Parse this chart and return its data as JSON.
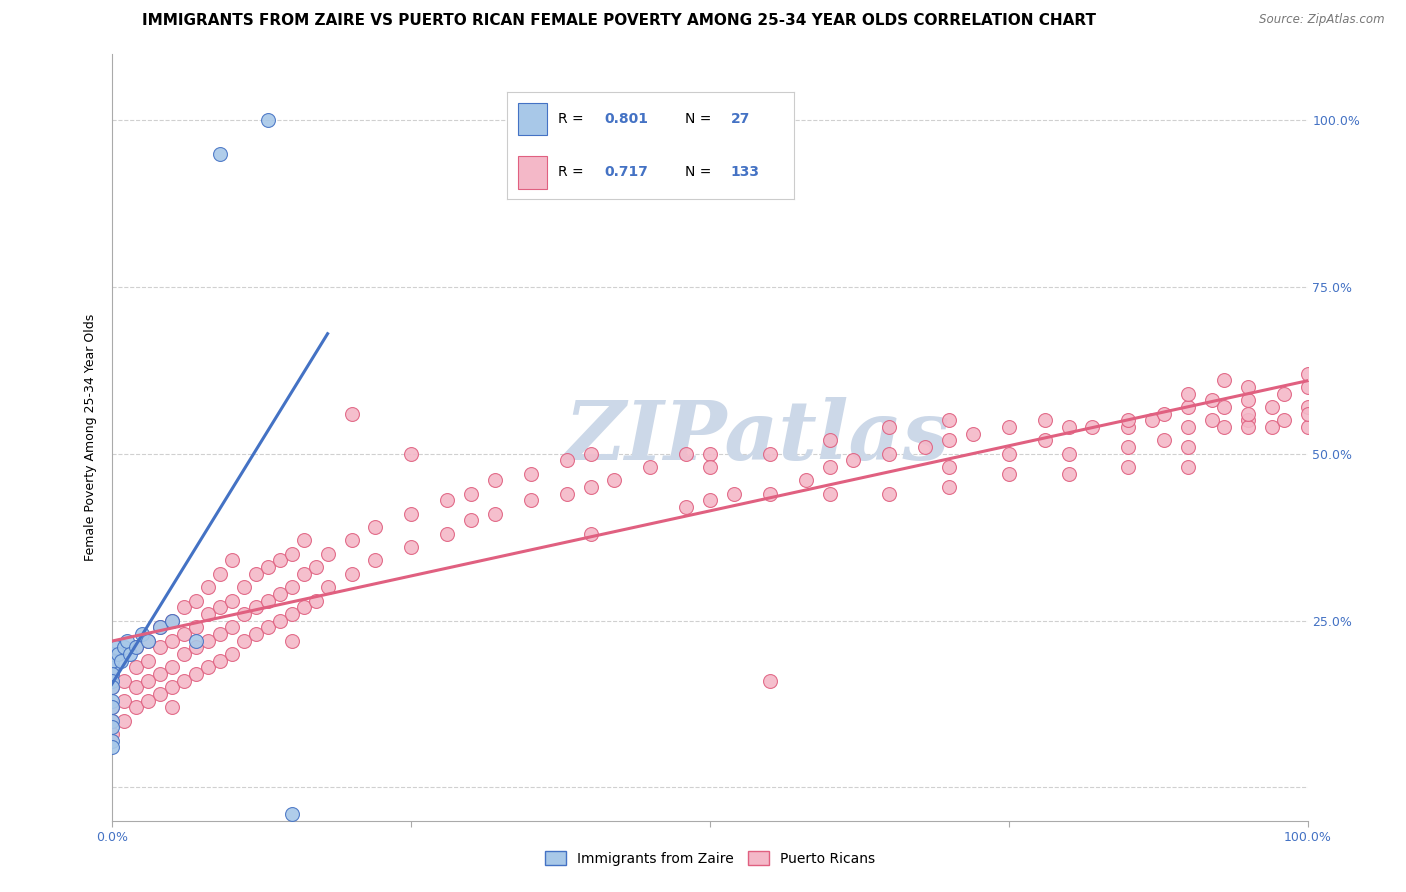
{
  "title": "IMMIGRANTS FROM ZAIRE VS PUERTO RICAN FEMALE POVERTY AMONG 25-34 YEAR OLDS CORRELATION CHART",
  "source": "Source: ZipAtlas.com",
  "ylabel": "Female Poverty Among 25-34 Year Olds",
  "xlim": [
    0.0,
    1.0
  ],
  "ylim": [
    -0.05,
    1.1
  ],
  "xtick_vals": [
    0.0,
    0.25,
    0.5,
    0.75,
    1.0
  ],
  "xtick_labels": [
    "0.0%",
    "",
    "",
    "",
    "100.0%"
  ],
  "ytick_vals": [
    0.0,
    0.25,
    0.5,
    0.75,
    1.0
  ],
  "ytick_labels_right": [
    "",
    "25.0%",
    "50.0%",
    "75.0%",
    "100.0%"
  ],
  "watermark": "ZIPatlas",
  "blue_color": "#a8c8e8",
  "blue_edge": "#4472c4",
  "pink_color": "#f4b8c8",
  "pink_edge": "#e06080",
  "line_blue": "#4472c4",
  "line_pink": "#e06080",
  "blue_regression": [
    -0.03,
    0.18
  ],
  "pink_regression": [
    0.0,
    1.0
  ],
  "zaire_scatter": [
    [
      0.0,
      0.18
    ],
    [
      0.0,
      0.2
    ],
    [
      0.0,
      0.19
    ],
    [
      0.0,
      0.17
    ],
    [
      0.0,
      0.16
    ],
    [
      0.0,
      0.15
    ],
    [
      0.0,
      0.13
    ],
    [
      0.0,
      0.12
    ],
    [
      0.0,
      0.1
    ],
    [
      0.0,
      0.09
    ],
    [
      0.0,
      0.07
    ],
    [
      0.0,
      0.06
    ],
    [
      0.003,
      0.21
    ],
    [
      0.005,
      0.2
    ],
    [
      0.007,
      0.19
    ],
    [
      0.01,
      0.21
    ],
    [
      0.012,
      0.22
    ],
    [
      0.015,
      0.2
    ],
    [
      0.02,
      0.21
    ],
    [
      0.025,
      0.23
    ],
    [
      0.03,
      0.22
    ],
    [
      0.04,
      0.24
    ],
    [
      0.05,
      0.25
    ],
    [
      0.07,
      0.22
    ],
    [
      0.09,
      0.95
    ],
    [
      0.13,
      1.0
    ],
    [
      0.15,
      -0.04
    ]
  ],
  "pr_scatter": [
    [
      0.0,
      0.08
    ],
    [
      0.0,
      0.1
    ],
    [
      0.0,
      0.12
    ],
    [
      0.0,
      0.15
    ],
    [
      0.01,
      0.1
    ],
    [
      0.01,
      0.13
    ],
    [
      0.01,
      0.16
    ],
    [
      0.02,
      0.12
    ],
    [
      0.02,
      0.15
    ],
    [
      0.02,
      0.18
    ],
    [
      0.02,
      0.21
    ],
    [
      0.03,
      0.13
    ],
    [
      0.03,
      0.16
    ],
    [
      0.03,
      0.19
    ],
    [
      0.03,
      0.22
    ],
    [
      0.04,
      0.14
    ],
    [
      0.04,
      0.17
    ],
    [
      0.04,
      0.21
    ],
    [
      0.04,
      0.24
    ],
    [
      0.05,
      0.15
    ],
    [
      0.05,
      0.18
    ],
    [
      0.05,
      0.22
    ],
    [
      0.05,
      0.25
    ],
    [
      0.05,
      0.12
    ],
    [
      0.06,
      0.16
    ],
    [
      0.06,
      0.2
    ],
    [
      0.06,
      0.23
    ],
    [
      0.06,
      0.27
    ],
    [
      0.07,
      0.17
    ],
    [
      0.07,
      0.21
    ],
    [
      0.07,
      0.24
    ],
    [
      0.07,
      0.28
    ],
    [
      0.08,
      0.18
    ],
    [
      0.08,
      0.22
    ],
    [
      0.08,
      0.26
    ],
    [
      0.08,
      0.3
    ],
    [
      0.09,
      0.19
    ],
    [
      0.09,
      0.23
    ],
    [
      0.09,
      0.27
    ],
    [
      0.09,
      0.32
    ],
    [
      0.1,
      0.2
    ],
    [
      0.1,
      0.24
    ],
    [
      0.1,
      0.28
    ],
    [
      0.1,
      0.34
    ],
    [
      0.11,
      0.22
    ],
    [
      0.11,
      0.26
    ],
    [
      0.11,
      0.3
    ],
    [
      0.12,
      0.23
    ],
    [
      0.12,
      0.27
    ],
    [
      0.12,
      0.32
    ],
    [
      0.13,
      0.24
    ],
    [
      0.13,
      0.28
    ],
    [
      0.13,
      0.33
    ],
    [
      0.14,
      0.25
    ],
    [
      0.14,
      0.29
    ],
    [
      0.14,
      0.34
    ],
    [
      0.15,
      0.26
    ],
    [
      0.15,
      0.3
    ],
    [
      0.15,
      0.35
    ],
    [
      0.15,
      0.22
    ],
    [
      0.16,
      0.27
    ],
    [
      0.16,
      0.32
    ],
    [
      0.16,
      0.37
    ],
    [
      0.17,
      0.28
    ],
    [
      0.17,
      0.33
    ],
    [
      0.18,
      0.3
    ],
    [
      0.18,
      0.35
    ],
    [
      0.2,
      0.32
    ],
    [
      0.2,
      0.37
    ],
    [
      0.2,
      0.56
    ],
    [
      0.22,
      0.34
    ],
    [
      0.22,
      0.39
    ],
    [
      0.25,
      0.36
    ],
    [
      0.25,
      0.41
    ],
    [
      0.25,
      0.5
    ],
    [
      0.28,
      0.38
    ],
    [
      0.28,
      0.43
    ],
    [
      0.3,
      0.4
    ],
    [
      0.3,
      0.44
    ],
    [
      0.32,
      0.41
    ],
    [
      0.32,
      0.46
    ],
    [
      0.35,
      0.43
    ],
    [
      0.35,
      0.47
    ],
    [
      0.38,
      0.44
    ],
    [
      0.38,
      0.49
    ],
    [
      0.4,
      0.45
    ],
    [
      0.4,
      0.5
    ],
    [
      0.4,
      0.38
    ],
    [
      0.42,
      0.46
    ],
    [
      0.45,
      0.48
    ],
    [
      0.48,
      0.42
    ],
    [
      0.48,
      0.5
    ],
    [
      0.5,
      0.43
    ],
    [
      0.5,
      0.5
    ],
    [
      0.5,
      0.48
    ],
    [
      0.52,
      0.44
    ],
    [
      0.55,
      0.16
    ],
    [
      0.55,
      0.44
    ],
    [
      0.55,
      0.5
    ],
    [
      0.58,
      0.46
    ],
    [
      0.6,
      0.48
    ],
    [
      0.6,
      0.52
    ],
    [
      0.6,
      0.44
    ],
    [
      0.62,
      0.49
    ],
    [
      0.65,
      0.5
    ],
    [
      0.65,
      0.54
    ],
    [
      0.65,
      0.44
    ],
    [
      0.68,
      0.51
    ],
    [
      0.7,
      0.52
    ],
    [
      0.7,
      0.55
    ],
    [
      0.7,
      0.48
    ],
    [
      0.7,
      0.45
    ],
    [
      0.72,
      0.53
    ],
    [
      0.75,
      0.54
    ],
    [
      0.75,
      0.5
    ],
    [
      0.75,
      0.47
    ],
    [
      0.78,
      0.52
    ],
    [
      0.78,
      0.55
    ],
    [
      0.8,
      0.54
    ],
    [
      0.8,
      0.5
    ],
    [
      0.8,
      0.47
    ],
    [
      0.82,
      0.54
    ],
    [
      0.85,
      0.54
    ],
    [
      0.85,
      0.51
    ],
    [
      0.85,
      0.55
    ],
    [
      0.85,
      0.48
    ],
    [
      0.87,
      0.55
    ],
    [
      0.88,
      0.52
    ],
    [
      0.88,
      0.56
    ],
    [
      0.9,
      0.54
    ],
    [
      0.9,
      0.57
    ],
    [
      0.9,
      0.51
    ],
    [
      0.9,
      0.48
    ],
    [
      0.9,
      0.59
    ],
    [
      0.92,
      0.55
    ],
    [
      0.92,
      0.58
    ],
    [
      0.93,
      0.54
    ],
    [
      0.93,
      0.57
    ],
    [
      0.93,
      0.61
    ],
    [
      0.95,
      0.55
    ],
    [
      0.95,
      0.58
    ],
    [
      0.95,
      0.54
    ],
    [
      0.95,
      0.6
    ],
    [
      0.95,
      0.56
    ],
    [
      0.97,
      0.54
    ],
    [
      0.97,
      0.57
    ],
    [
      0.98,
      0.55
    ],
    [
      0.98,
      0.59
    ],
    [
      1.0,
      0.54
    ],
    [
      1.0,
      0.57
    ],
    [
      1.0,
      0.6
    ],
    [
      1.0,
      0.56
    ],
    [
      1.0,
      0.62
    ]
  ],
  "background_color": "#ffffff",
  "grid_color": "#d0d0d0",
  "title_fontsize": 11,
  "axis_label_fontsize": 9,
  "tick_fontsize": 9,
  "watermark_color": "#ccd8e8",
  "watermark_fontsize": 60,
  "scatter_size": 100
}
